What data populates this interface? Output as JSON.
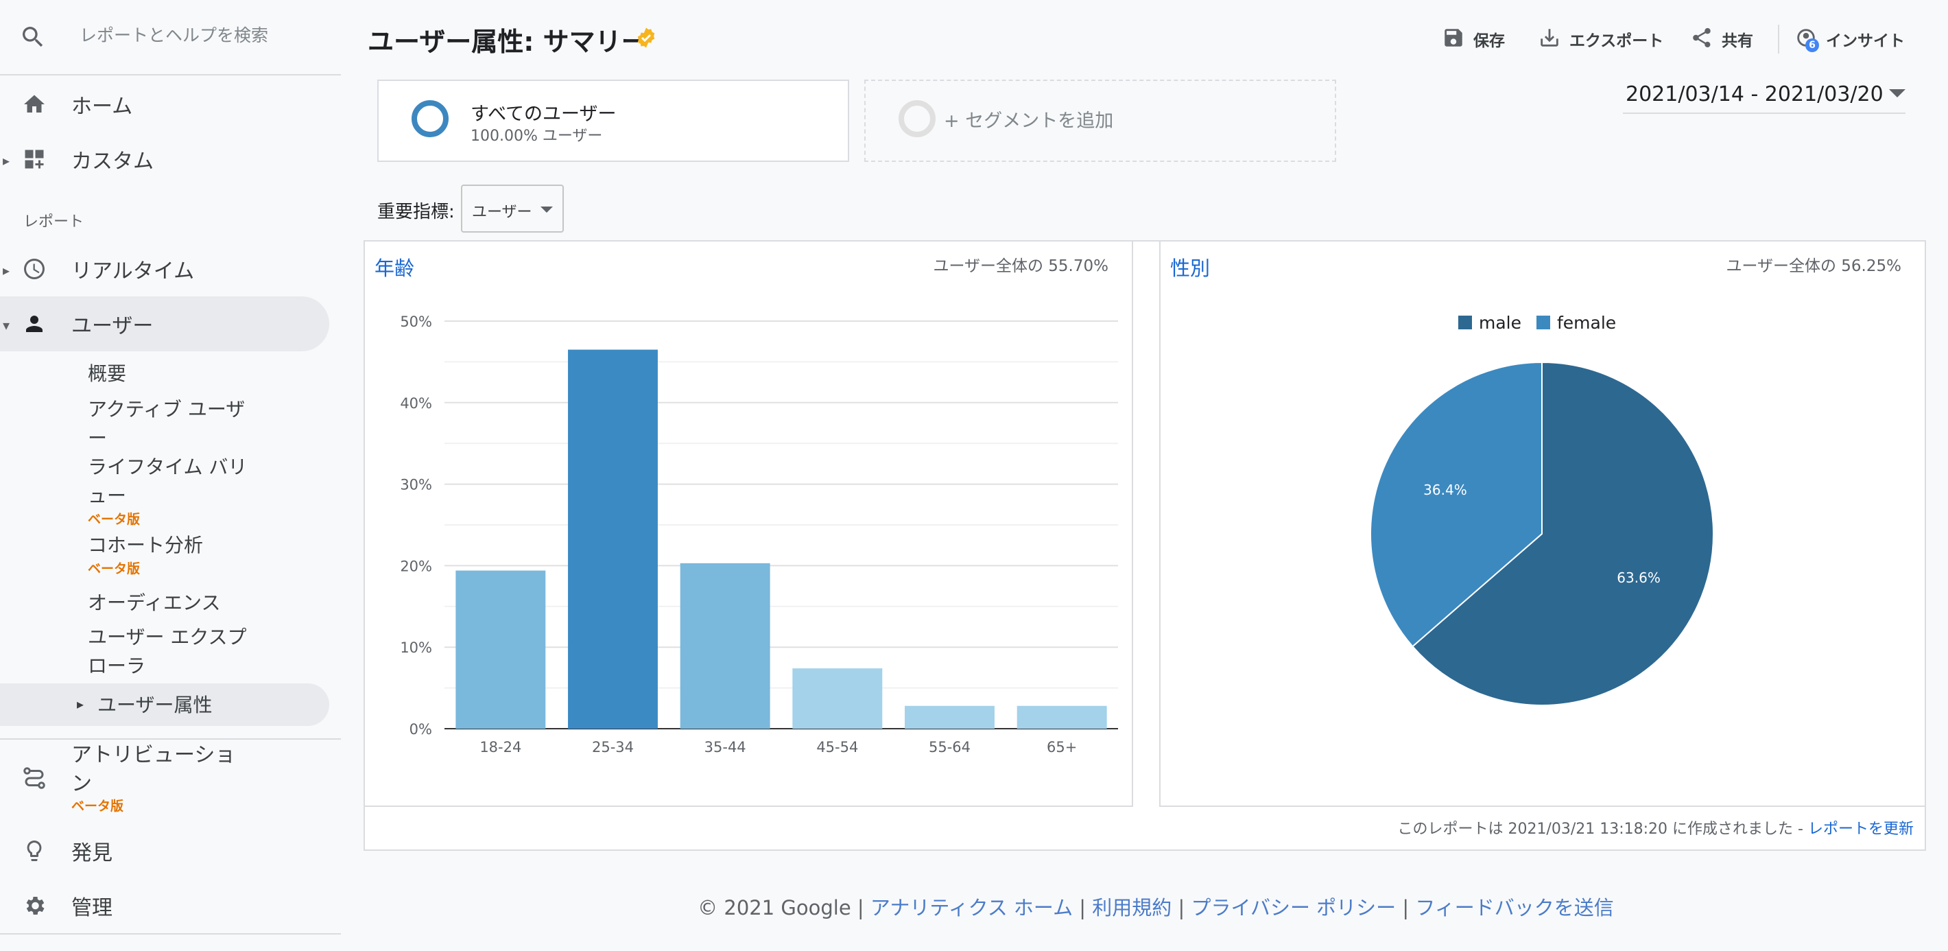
{
  "search": {
    "placeholder": "レポートとヘルプを検索"
  },
  "sidebar": {
    "home": "ホーム",
    "custom": "カスタム",
    "reports_label": "レポート",
    "realtime": "リアルタイム",
    "users": "ユーザー",
    "sub_items": [
      {
        "label": "概要"
      },
      {
        "label": "アクティブ ユーザー"
      },
      {
        "label": "ライフタイム バリュー",
        "badge": "ベータ版"
      },
      {
        "label": "コホート分析",
        "badge": "ベータ版"
      },
      {
        "label": "オーディエンス"
      },
      {
        "label": "ユーザー エクスプローラ"
      },
      {
        "label": "ユーザー属性"
      }
    ],
    "attribution": "アトリビューション",
    "attribution_badge": "ベータ版",
    "discover": "発見",
    "admin": "管理"
  },
  "header": {
    "title": "ユーザー属性: サマリー",
    "save": "保存",
    "export": "エクスポート",
    "share": "共有",
    "insights": "インサイト",
    "insights_count": "6"
  },
  "segments": {
    "all_users": "すべてのユーザー",
    "all_users_pct": "100.00% ユーザー",
    "add_segment": "+ セグメントを追加"
  },
  "date_range": "2021/03/14 - 2021/03/20",
  "metric": {
    "label": "重要指標:",
    "value": "ユーザー"
  },
  "panels": {
    "age": {
      "title": "年齢",
      "note": "ユーザー全体の 55.70%"
    },
    "gender": {
      "title": "性別",
      "note": "ユーザー全体の 56.25%"
    }
  },
  "chart_data": [
    {
      "type": "bar",
      "title": "年齢",
      "categories": [
        "18-24",
        "25-34",
        "35-44",
        "45-54",
        "55-64",
        "65+"
      ],
      "values": [
        19.4,
        46.5,
        20.3,
        7.4,
        2.8,
        2.8
      ],
      "colors": [
        "#7ab8dc",
        "#3c8ac4",
        "#7ab8dc",
        "#a3d2ea",
        "#a3d2ea",
        "#a3d2ea"
      ],
      "yticks": [
        "0%",
        "10%",
        "20%",
        "30%",
        "40%",
        "50%"
      ],
      "ylim": [
        0,
        50
      ]
    },
    {
      "type": "pie",
      "title": "性別",
      "legend": [
        "male",
        "female"
      ],
      "values": [
        63.6,
        36.4
      ],
      "labels": [
        "63.6%",
        "36.4%"
      ],
      "colors": [
        "#2d6891",
        "#3c89c0"
      ]
    }
  ],
  "footer": {
    "generated": "このレポートは 2021/03/21 13:18:20 に作成されました -",
    "refresh": "レポートを更新",
    "copyright": "© 2021 Google",
    "links": [
      "アナリティクス ホーム",
      "利用規約",
      "プライバシー ポリシー",
      "フィードバックを送信"
    ]
  }
}
